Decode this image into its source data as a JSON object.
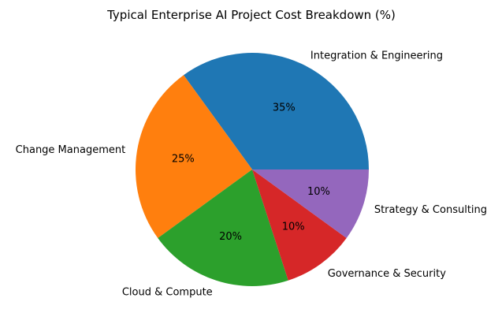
{
  "chart_data": {
    "type": "pie",
    "title": "Typical Enterprise AI Project Cost Breakdown (%)",
    "start_angle": 0,
    "direction": "counterclockwise",
    "slices": [
      {
        "label": "Integration & Engineering",
        "value": 35,
        "pct_label": "35%",
        "color": "#1f77b4"
      },
      {
        "label": "Change Management",
        "value": 25,
        "pct_label": "25%",
        "color": "#ff7f0e"
      },
      {
        "label": "Cloud & Compute",
        "value": 20,
        "pct_label": "20%",
        "color": "#2ca02c"
      },
      {
        "label": "Governance & Security",
        "value": 10,
        "pct_label": "10%",
        "color": "#d62728"
      },
      {
        "label": "Strategy & Consulting",
        "value": 10,
        "pct_label": "10%",
        "color": "#9467bd"
      }
    ]
  }
}
